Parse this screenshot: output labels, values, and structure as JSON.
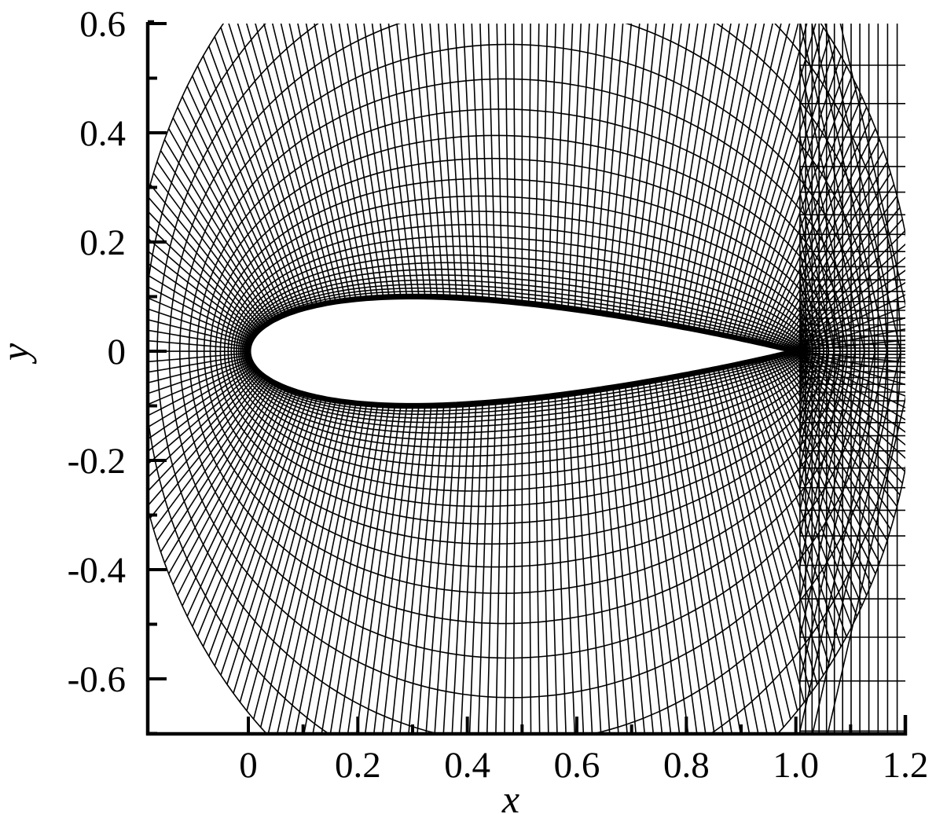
{
  "chart_data": {
    "type": "mesh",
    "title": "",
    "xlabel": "x",
    "ylabel": "y",
    "xlim": [
      -0.18,
      1.2
    ],
    "ylim": [
      -0.7,
      0.6
    ],
    "grid": false,
    "x_ticks": [
      "0",
      "0.2",
      "0.4",
      "0.6",
      "0.8",
      "1.0",
      "1.2"
    ],
    "y_ticks": [
      "0.6",
      "0.4",
      "0.2",
      "0",
      "-0.2",
      "-0.4",
      "-0.6"
    ],
    "airfoil": {
      "leading_edge_x": 0.0,
      "trailing_edge_x": 1.0,
      "max_half_thickness": 0.06,
      "max_thickness_x": 0.35
    },
    "colors": {
      "lines": "#000000",
      "background": "#ffffff"
    }
  }
}
